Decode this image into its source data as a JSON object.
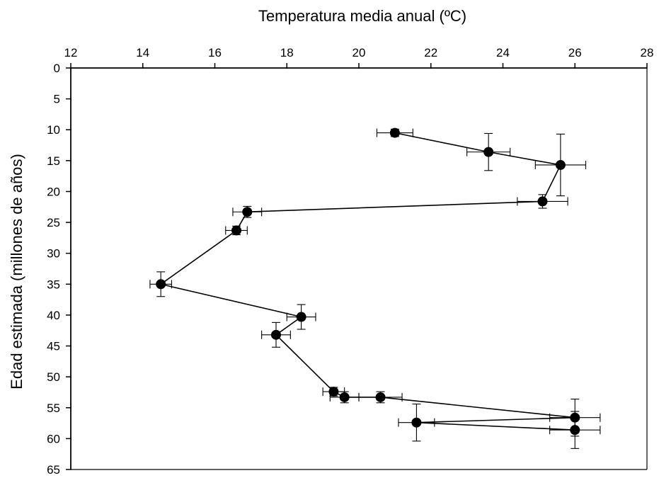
{
  "chart_data": {
    "type": "scatter",
    "title": "",
    "xlabel": "Temperatura media anual (ºC)",
    "ylabel": "Edad estimada (millones de años)",
    "xlim": [
      12,
      28
    ],
    "ylim": [
      0,
      65
    ],
    "x_ticks": [
      12,
      14,
      16,
      18,
      20,
      22,
      24,
      26,
      28
    ],
    "y_ticks": [
      0,
      5,
      10,
      15,
      20,
      25,
      30,
      35,
      40,
      45,
      50,
      55,
      60,
      65
    ],
    "x_axis_position": "top",
    "y_axis_inverted": true,
    "grid": false,
    "legend": "none",
    "marker_color": "#000000",
    "line_color": "#000000",
    "series": [
      {
        "connected": true,
        "points": [
          {
            "x": 21.0,
            "y": 10.5,
            "xerr": 0.5,
            "yerr": 0.6
          },
          {
            "x": 23.6,
            "y": 13.6,
            "xerr": 0.6,
            "yerr": 3.0
          },
          {
            "x": 25.6,
            "y": 15.7,
            "xerr": 0.7,
            "yerr": 5.0
          },
          {
            "x": 25.1,
            "y": 21.6,
            "xerr": 0.7,
            "yerr": 1.1
          },
          {
            "x": 16.9,
            "y": 23.3,
            "xerr": 0.4,
            "yerr": 0.9
          },
          {
            "x": 16.6,
            "y": 26.3,
            "xerr": 0.3,
            "yerr": 0.7
          },
          {
            "x": 14.5,
            "y": 35.0,
            "xerr": 0.3,
            "yerr": 2.0
          },
          {
            "x": 18.4,
            "y": 40.3,
            "xerr": 0.4,
            "yerr": 2.0
          },
          {
            "x": 17.7,
            "y": 43.2,
            "xerr": 0.4,
            "yerr": 2.0
          },
          {
            "x": 19.3,
            "y": 52.4,
            "xerr": 0.3,
            "yerr": 0.7
          },
          {
            "x": 19.6,
            "y": 53.3,
            "xerr": 0.4,
            "yerr": 0.9
          },
          {
            "x": 20.6,
            "y": 53.3,
            "xerr": 0.6,
            "yerr": 0.9
          },
          {
            "x": 26.0,
            "y": 56.6,
            "xerr": 0.7,
            "yerr": 3.0
          },
          {
            "x": 21.6,
            "y": 57.4,
            "xerr": 0.5,
            "yerr": 3.0
          },
          {
            "x": 26.0,
            "y": 58.6,
            "xerr": 0.7,
            "yerr": 3.0
          }
        ]
      }
    ]
  }
}
